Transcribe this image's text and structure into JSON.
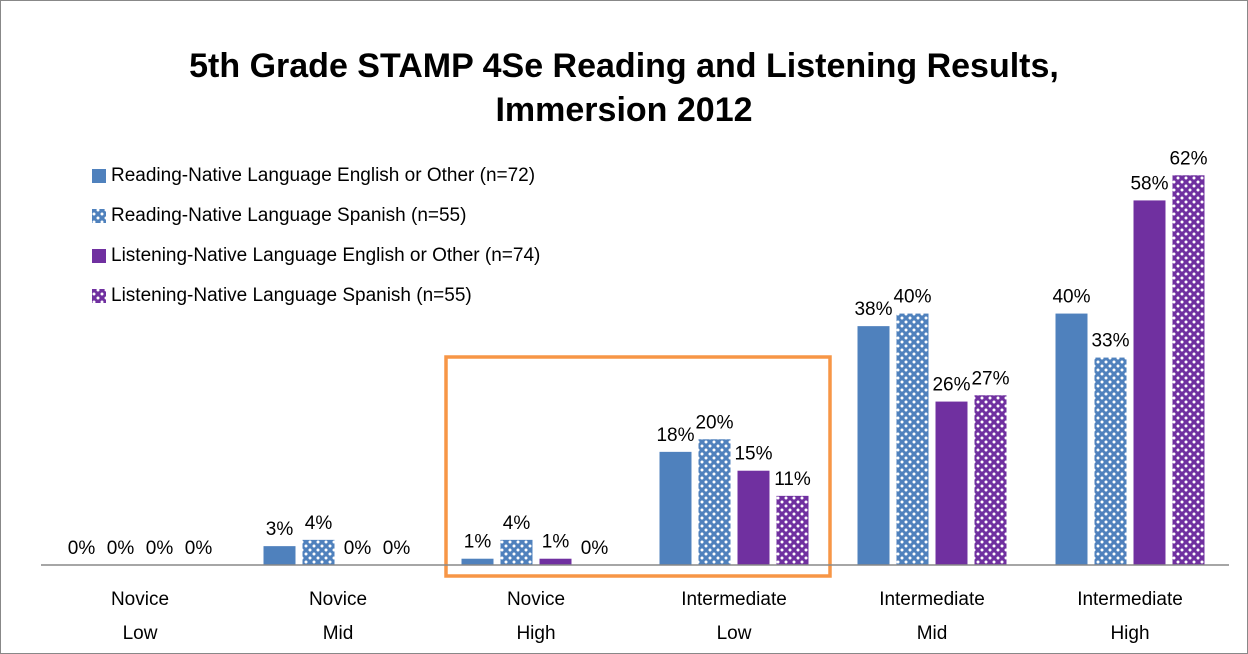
{
  "chart_data": {
    "type": "bar",
    "title": [
      "5th Grade STAMP 4Se Reading and Listening Results,",
      "Immersion 2012"
    ],
    "categories": [
      [
        "Novice",
        "Low"
      ],
      [
        "Novice",
        "Mid"
      ],
      [
        "Novice",
        "High"
      ],
      [
        "Intermediate",
        "Low"
      ],
      [
        "Intermediate",
        "Mid"
      ],
      [
        "Intermediate",
        "High"
      ]
    ],
    "series": [
      {
        "name": "Reading-Native Language English or Other (n=72)",
        "color": "#4f81bd",
        "pattern": "solid",
        "values": [
          0,
          3,
          1,
          18,
          38,
          40
        ],
        "value_labels": [
          "0%",
          "3%",
          "1%",
          "18%",
          "38%",
          "40%"
        ]
      },
      {
        "name": "Reading-Native Language Spanish (n=55)",
        "color": "#4f81bd",
        "pattern": "dots",
        "values": [
          0,
          4,
          4,
          20,
          40,
          33
        ],
        "value_labels": [
          "0%",
          "4%",
          "4%",
          "20%",
          "40%",
          "33%"
        ]
      },
      {
        "name": "Listening-Native Language English or Other (n=74)",
        "color": "#7030a0",
        "pattern": "solid",
        "values": [
          0,
          0,
          1,
          15,
          26,
          58
        ],
        "value_labels": [
          "0%",
          "0%",
          "1%",
          "15%",
          "26%",
          "58%"
        ]
      },
      {
        "name": "Listening-Native Language Spanish (n=55)",
        "color": "#7030a0",
        "pattern": "dots",
        "values": [
          0,
          0,
          0,
          11,
          27,
          62
        ],
        "value_labels": [
          "0%",
          "0%",
          "0%",
          "11%",
          "27%",
          "62%"
        ]
      }
    ],
    "ylim": [
      0,
      70
    ],
    "legend": "top-left"
  }
}
